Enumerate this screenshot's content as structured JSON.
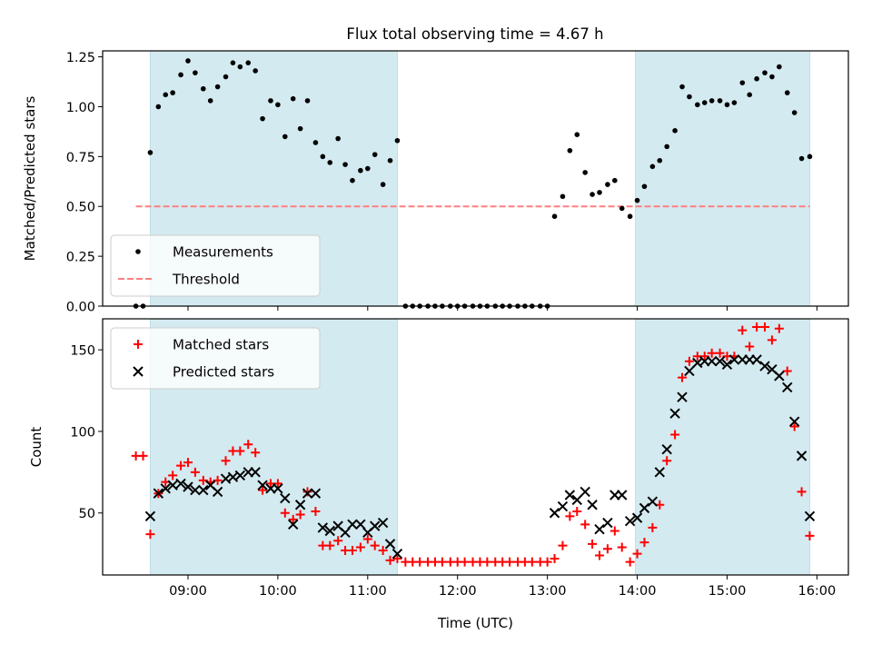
{
  "title": "Flux total observing time = 4.67 h",
  "colors": {
    "span": "#d3eaf0",
    "measure": "#000000",
    "threshold": "#ff7f7f",
    "matched": "#ff0000",
    "predicted": "#000000"
  },
  "chart_data": [
    {
      "type": "scatter",
      "ylabel": "Matched/Predicted stars",
      "ylim": [
        0,
        1.28
      ],
      "xlim": [
        8.05,
        16.35
      ],
      "yticks": [
        "0.00",
        "0.25",
        "0.50",
        "0.75",
        "1.00",
        "1.25"
      ],
      "shaded_spans": [
        [
          8.58,
          11.33
        ],
        [
          13.98,
          15.92
        ]
      ],
      "threshold": {
        "value": 0.5,
        "x_range": [
          8.42,
          15.92
        ]
      },
      "legend": {
        "position": "lower-left",
        "entries": [
          "Measurements",
          "Threshold"
        ]
      },
      "series": [
        {
          "name": "Measurements",
          "points": [
            [
              8.42,
              0.0
            ],
            [
              8.5,
              0.0
            ],
            [
              8.58,
              0.77
            ],
            [
              8.67,
              1.0
            ],
            [
              8.75,
              1.06
            ],
            [
              8.83,
              1.07
            ],
            [
              8.92,
              1.16
            ],
            [
              9.0,
              1.23
            ],
            [
              9.08,
              1.17
            ],
            [
              9.17,
              1.09
            ],
            [
              9.25,
              1.03
            ],
            [
              9.33,
              1.1
            ],
            [
              9.42,
              1.15
            ],
            [
              9.5,
              1.22
            ],
            [
              9.58,
              1.2
            ],
            [
              9.67,
              1.22
            ],
            [
              9.75,
              1.18
            ],
            [
              9.83,
              0.94
            ],
            [
              9.92,
              1.03
            ],
            [
              10.0,
              1.01
            ],
            [
              10.08,
              0.85
            ],
            [
              10.17,
              1.04
            ],
            [
              10.25,
              0.89
            ],
            [
              10.33,
              1.03
            ],
            [
              10.42,
              0.82
            ],
            [
              10.5,
              0.75
            ],
            [
              10.58,
              0.72
            ],
            [
              10.67,
              0.84
            ],
            [
              10.75,
              0.71
            ],
            [
              10.83,
              0.63
            ],
            [
              10.92,
              0.68
            ],
            [
              11.0,
              0.69
            ],
            [
              11.08,
              0.76
            ],
            [
              11.17,
              0.61
            ],
            [
              11.25,
              0.73
            ],
            [
              11.33,
              0.83
            ],
            [
              11.42,
              0.0
            ],
            [
              11.5,
              0.0
            ],
            [
              11.58,
              0.0
            ],
            [
              11.67,
              0.0
            ],
            [
              11.75,
              0.0
            ],
            [
              11.83,
              0.0
            ],
            [
              11.92,
              0.0
            ],
            [
              12.0,
              0.0
            ],
            [
              12.08,
              0.0
            ],
            [
              12.17,
              0.0
            ],
            [
              12.25,
              0.0
            ],
            [
              12.33,
              0.0
            ],
            [
              12.42,
              0.0
            ],
            [
              12.5,
              0.0
            ],
            [
              12.58,
              0.0
            ],
            [
              12.67,
              0.0
            ],
            [
              12.75,
              0.0
            ],
            [
              12.83,
              0.0
            ],
            [
              12.92,
              0.0
            ],
            [
              13.0,
              0.0
            ],
            [
              13.08,
              0.45
            ],
            [
              13.17,
              0.55
            ],
            [
              13.25,
              0.78
            ],
            [
              13.33,
              0.86
            ],
            [
              13.42,
              0.67
            ],
            [
              13.5,
              0.56
            ],
            [
              13.58,
              0.57
            ],
            [
              13.67,
              0.61
            ],
            [
              13.75,
              0.63
            ],
            [
              13.83,
              0.49
            ],
            [
              13.92,
              0.45
            ],
            [
              14.0,
              0.53
            ],
            [
              14.08,
              0.6
            ],
            [
              14.17,
              0.7
            ],
            [
              14.25,
              0.73
            ],
            [
              14.33,
              0.8
            ],
            [
              14.42,
              0.88
            ],
            [
              14.5,
              1.1
            ],
            [
              14.58,
              1.05
            ],
            [
              14.67,
              1.01
            ],
            [
              14.75,
              1.02
            ],
            [
              14.83,
              1.03
            ],
            [
              14.92,
              1.03
            ],
            [
              15.0,
              1.01
            ],
            [
              15.08,
              1.02
            ],
            [
              15.17,
              1.12
            ],
            [
              15.25,
              1.06
            ],
            [
              15.33,
              1.14
            ],
            [
              15.42,
              1.17
            ],
            [
              15.5,
              1.15
            ],
            [
              15.58,
              1.2
            ],
            [
              15.67,
              1.07
            ],
            [
              15.75,
              0.97
            ],
            [
              15.83,
              0.74
            ],
            [
              15.92,
              0.75
            ]
          ]
        }
      ]
    },
    {
      "type": "scatter",
      "xlabel": "Time (UTC)",
      "ylabel": "Count",
      "ylim": [
        12,
        169
      ],
      "xlim": [
        8.05,
        16.35
      ],
      "yticks": [
        "50",
        "100",
        "150"
      ],
      "xticks": [
        "09:00",
        "10:00",
        "11:00",
        "12:00",
        "13:00",
        "14:00",
        "15:00",
        "16:00"
      ],
      "shaded_spans": [
        [
          8.58,
          11.33
        ],
        [
          13.98,
          15.92
        ]
      ],
      "legend": {
        "position": "top-left",
        "entries": [
          "Matched stars",
          "Predicted stars"
        ]
      },
      "series": [
        {
          "name": "Matched stars",
          "points": [
            [
              8.42,
              85
            ],
            [
              8.5,
              85
            ],
            [
              8.58,
              37
            ],
            [
              8.67,
              62
            ],
            [
              8.75,
              69
            ],
            [
              8.83,
              73
            ],
            [
              8.92,
              79
            ],
            [
              9.0,
              81
            ],
            [
              9.08,
              75
            ],
            [
              9.17,
              70
            ],
            [
              9.25,
              69
            ],
            [
              9.33,
              70
            ],
            [
              9.42,
              82
            ],
            [
              9.5,
              88
            ],
            [
              9.58,
              88
            ],
            [
              9.67,
              92
            ],
            [
              9.75,
              87
            ],
            [
              9.83,
              64
            ],
            [
              9.92,
              68
            ],
            [
              10.0,
              68
            ],
            [
              10.08,
              50
            ],
            [
              10.17,
              46
            ],
            [
              10.25,
              49
            ],
            [
              10.33,
              63
            ],
            [
              10.42,
              51
            ],
            [
              10.5,
              30
            ],
            [
              10.58,
              30
            ],
            [
              10.67,
              33
            ],
            [
              10.75,
              27
            ],
            [
              10.83,
              27
            ],
            [
              10.92,
              29
            ],
            [
              11.0,
              34
            ],
            [
              11.08,
              30
            ],
            [
              11.17,
              27
            ],
            [
              11.25,
              21
            ],
            [
              11.33,
              22
            ],
            [
              11.42,
              20
            ],
            [
              11.5,
              20
            ],
            [
              11.58,
              20
            ],
            [
              11.67,
              20
            ],
            [
              11.75,
              20
            ],
            [
              11.83,
              20
            ],
            [
              11.92,
              20
            ],
            [
              12.0,
              20
            ],
            [
              12.08,
              20
            ],
            [
              12.17,
              20
            ],
            [
              12.25,
              20
            ],
            [
              12.33,
              20
            ],
            [
              12.42,
              20
            ],
            [
              12.5,
              20
            ],
            [
              12.58,
              20
            ],
            [
              12.67,
              20
            ],
            [
              12.75,
              20
            ],
            [
              12.83,
              20
            ],
            [
              12.92,
              20
            ],
            [
              13.0,
              20
            ],
            [
              13.08,
              22
            ],
            [
              13.17,
              30
            ],
            [
              13.25,
              48
            ],
            [
              13.33,
              51
            ],
            [
              13.42,
              43
            ],
            [
              13.5,
              31
            ],
            [
              13.58,
              24
            ],
            [
              13.67,
              28
            ],
            [
              13.75,
              39
            ],
            [
              13.83,
              29
            ],
            [
              13.92,
              20
            ],
            [
              14.0,
              25
            ],
            [
              14.08,
              32
            ],
            [
              14.17,
              41
            ],
            [
              14.25,
              55
            ],
            [
              14.33,
              82
            ],
            [
              14.42,
              98
            ],
            [
              14.5,
              133
            ],
            [
              14.58,
              143
            ],
            [
              14.67,
              146
            ],
            [
              14.75,
              146
            ],
            [
              14.83,
              148
            ],
            [
              14.92,
              148
            ],
            [
              15.0,
              146
            ],
            [
              15.08,
              146
            ],
            [
              15.17,
              162
            ],
            [
              15.25,
              152
            ],
            [
              15.33,
              164
            ],
            [
              15.42,
              164
            ],
            [
              15.5,
              156
            ],
            [
              15.58,
              163
            ],
            [
              15.67,
              137
            ],
            [
              15.75,
              103
            ],
            [
              15.83,
              63
            ],
            [
              15.92,
              36
            ]
          ]
        },
        {
          "name": "Predicted stars",
          "points": [
            [
              8.58,
              48
            ],
            [
              8.67,
              62
            ],
            [
              8.75,
              65
            ],
            [
              8.83,
              67
            ],
            [
              8.92,
              68
            ],
            [
              9.0,
              66
            ],
            [
              9.08,
              64
            ],
            [
              9.17,
              64
            ],
            [
              9.25,
              67
            ],
            [
              9.33,
              63
            ],
            [
              9.42,
              71
            ],
            [
              9.5,
              72
            ],
            [
              9.58,
              73
            ],
            [
              9.67,
              75
            ],
            [
              9.75,
              75
            ],
            [
              9.83,
              67
            ],
            [
              9.92,
              65
            ],
            [
              10.0,
              65
            ],
            [
              10.08,
              59
            ],
            [
              10.17,
              43
            ],
            [
              10.25,
              55
            ],
            [
              10.33,
              62
            ],
            [
              10.42,
              62
            ],
            [
              10.5,
              41
            ],
            [
              10.58,
              39
            ],
            [
              10.67,
              42
            ],
            [
              10.75,
              38
            ],
            [
              10.83,
              43
            ],
            [
              10.92,
              43
            ],
            [
              11.0,
              38
            ],
            [
              11.08,
              42
            ],
            [
              11.17,
              44
            ],
            [
              11.25,
              31
            ],
            [
              11.33,
              25
            ],
            [
              13.08,
              50
            ],
            [
              13.17,
              54
            ],
            [
              13.25,
              61
            ],
            [
              13.33,
              58
            ],
            [
              13.42,
              63
            ],
            [
              13.5,
              55
            ],
            [
              13.58,
              40
            ],
            [
              13.67,
              44
            ],
            [
              13.75,
              61
            ],
            [
              13.83,
              61
            ],
            [
              13.92,
              45
            ],
            [
              14.0,
              47
            ],
            [
              14.08,
              53
            ],
            [
              14.17,
              57
            ],
            [
              14.25,
              75
            ],
            [
              14.33,
              89
            ],
            [
              14.42,
              111
            ],
            [
              14.5,
              121
            ],
            [
              14.58,
              137
            ],
            [
              14.67,
              142
            ],
            [
              14.75,
              143
            ],
            [
              14.83,
              143
            ],
            [
              14.92,
              143
            ],
            [
              15.0,
              141
            ],
            [
              15.08,
              144
            ],
            [
              15.17,
              144
            ],
            [
              15.25,
              144
            ],
            [
              15.33,
              144
            ],
            [
              15.42,
              140
            ],
            [
              15.5,
              138
            ],
            [
              15.58,
              134
            ],
            [
              15.67,
              127
            ],
            [
              15.75,
              106
            ],
            [
              15.83,
              85
            ],
            [
              15.92,
              48
            ]
          ]
        }
      ]
    }
  ]
}
